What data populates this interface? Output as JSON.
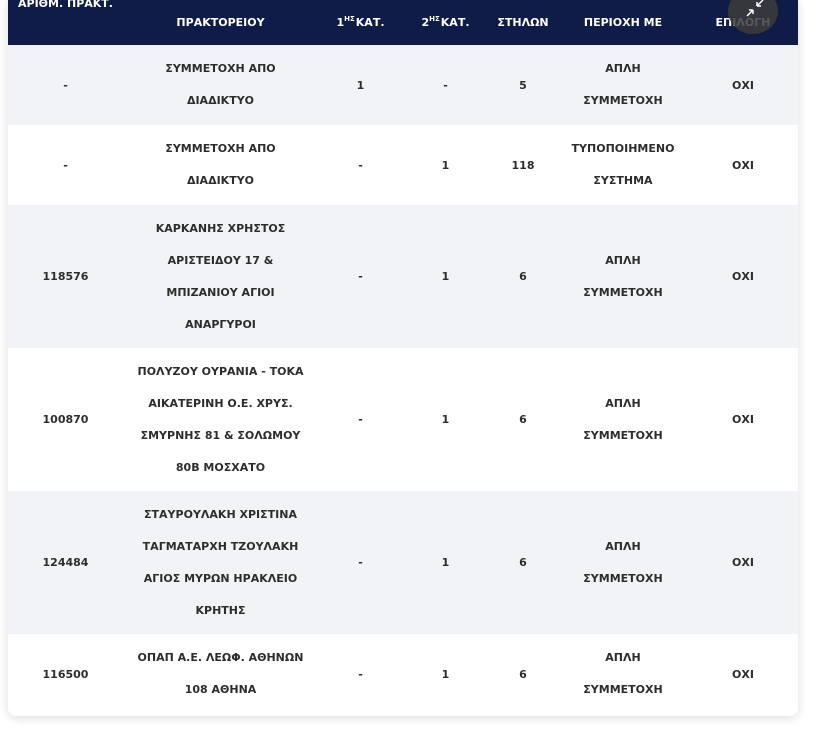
{
  "headers": {
    "agency_id": "ΑΡΙΘΜ. ΠΡΑΚΤ.",
    "agency": "ΠΡΑΚΤΟΡΕΙΟΥ",
    "first_cat_sup": "ΗΣ",
    "first_cat": "1",
    "first_cat_suffix": " ΚΑΤ.",
    "second_cat_sup": "ΗΣ",
    "second_cat": "2",
    "second_cat_suffix": " ΚΑΤ.",
    "columns": "ΣΤΗΛΩΝ",
    "area": "ΠΕΡΙΟΧΗ ΜΕ",
    "choice": "ΕΠΙΛΟΓΗ"
  },
  "corner_icon": "collapse-arrows-icon",
  "rows": [
    {
      "agency_id": "-",
      "agency": "ΣΥΜΜΕΤΟΧΗ ΑΠΟ ΔΙΑΔΙΚΤΥΟ",
      "first_cat": "1",
      "second_cat": "-",
      "columns": "5",
      "area": "ΑΠΛΗ ΣΥΜΜΕΤΟΧΗ",
      "choice": "ΟΧΙ"
    },
    {
      "agency_id": "-",
      "agency": "ΣΥΜΜΕΤΟΧΗ ΑΠΟ ΔΙΑΔΙΚΤΥΟ",
      "first_cat": "-",
      "second_cat": "1",
      "columns": "118",
      "area": "ΤΥΠΟΠΟΙΗΜΕΝΟ ΣΥΣΤΗΜΑ",
      "choice": "ΟΧΙ"
    },
    {
      "agency_id": "118576",
      "agency": "ΚΑΡΚΑΝΗΣ ΧΡΗΣΤΟΣ ΑΡΙΣΤΕΙΔΟΥ 17 & ΜΠΙΖΑΝΙΟΥ ΑΓΙΟΙ ΑΝΑΡΓΥΡΟΙ",
      "first_cat": "-",
      "second_cat": "1",
      "columns": "6",
      "area": "ΑΠΛΗ ΣΥΜΜΕΤΟΧΗ",
      "choice": "ΟΧΙ"
    },
    {
      "agency_id": "100870",
      "agency": "ΠΟΛΥΖΟΥ ΟΥΡΑΝΙΑ - ΤΟΚΑ ΑΙΚΑΤΕΡΙΝΗ Ο.Ε. ΧΡΥΣ. ΣΜΥΡΝΗΣ 81 & ΣΟΛΩΜΟΥ 80Β ΜΟΣΧΑΤΟ",
      "first_cat": "-",
      "second_cat": "1",
      "columns": "6",
      "area": "ΑΠΛΗ ΣΥΜΜΕΤΟΧΗ",
      "choice": "ΟΧΙ"
    },
    {
      "agency_id": "124484",
      "agency": "ΣΤΑΥΡΟΥΛΑΚΗ ΧΡΙΣΤΙΝΑ ΤΑΓΜΑΤΑΡΧΗ ΤΖΟΥΛΑΚΗ ΑΓΙΟΣ ΜΥΡΩΝ ΗΡΑΚΛΕΙΟ ΚΡΗΤΗΣ",
      "first_cat": "-",
      "second_cat": "1",
      "columns": "6",
      "area": "ΑΠΛΗ ΣΥΜΜΕΤΟΧΗ",
      "choice": "ΟΧΙ"
    },
    {
      "agency_id": "116500",
      "agency": "ΟΠΑΠ Α.Ε. ΛΕΩΦ. ΑΘΗΝΩΝ 108 ΑΘΗΝΑ",
      "first_cat": "-",
      "second_cat": "1",
      "columns": "6",
      "area": "ΑΠΛΗ ΣΥΜΜΕΤΟΧΗ",
      "choice": "ΟΧΙ"
    }
  ],
  "colors": {
    "header_bg": "#0f1c47",
    "row_shade": "#f2f3f7",
    "text": "#2d2d2d"
  }
}
